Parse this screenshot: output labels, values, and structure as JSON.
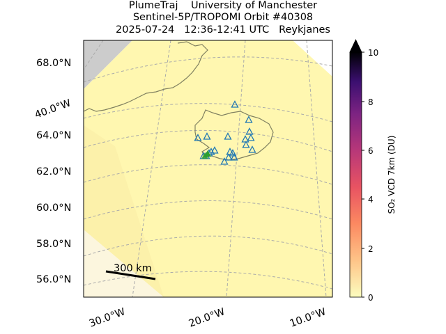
{
  "title": {
    "line1": "PlumeTraj    University of Manchester",
    "line2": "Sentinel-5P/TROPOMI Orbit #40308",
    "line3": "2025-07-24   12:36-12:41 UTC   Reykjanes"
  },
  "map": {
    "lat_labels": [
      "68.0°N",
      "64.0°N",
      "62.0°N",
      "60.0°N",
      "58.0°N",
      "56.0°N"
    ],
    "lon_labels_bottom": [
      "30.0°W",
      "20.0°W",
      "10.0°W"
    ],
    "lon_label_left": "40.0°W",
    "scale_bar_label": "300 km",
    "swath_color": "#fff7b0",
    "land_outline_color": "#808060",
    "volcano_marker_color": "#1f77b4",
    "eruption_marker_color": "#2ca02c",
    "missing_data_color": "#cccccc"
  },
  "colorbar": {
    "label": "SO₂ VCD 7km (DU)",
    "ticks": [
      "0",
      "2",
      "4",
      "6",
      "8",
      "10"
    ],
    "min": 0,
    "max": 10,
    "colormap": "magma_r",
    "extend": "max"
  }
}
